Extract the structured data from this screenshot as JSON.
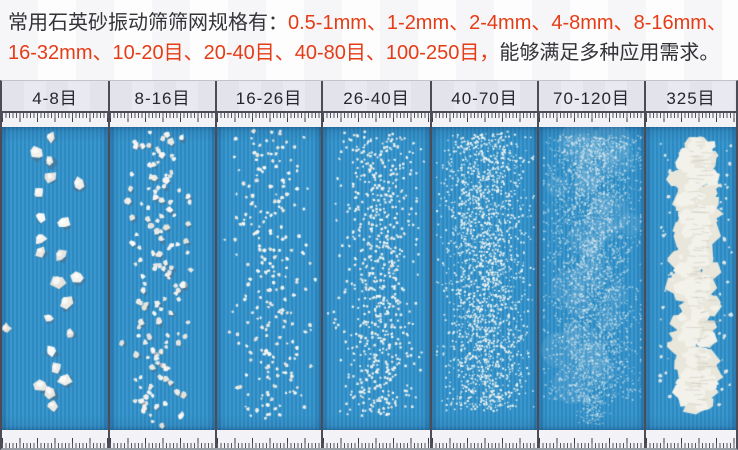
{
  "intro": {
    "line1_black": "常用石英砂振动筛筛网规格有：",
    "line1_red": "0.5-1mm、1-2mm、2-4mm、4-8mm、8-16mm、",
    "line2_red": "16-32mm、10-20目、20-40目、40-80目、100-250目，",
    "line2_black": "能够满足多种应用需求。",
    "text_color": "#333338",
    "highlight_color": "#e63c16"
  },
  "table": {
    "divider_color": "#4c4c56",
    "header_bg": "#e9e9f1",
    "photo_bg": "#2f90c9",
    "columns": [
      {
        "label": "4-8目"
      },
      {
        "label": "8-16目"
      },
      {
        "label": "16-26目"
      },
      {
        "label": "26-40目"
      },
      {
        "label": "40-70目"
      },
      {
        "label": "70-120目"
      },
      {
        "label": "325目"
      }
    ]
  }
}
